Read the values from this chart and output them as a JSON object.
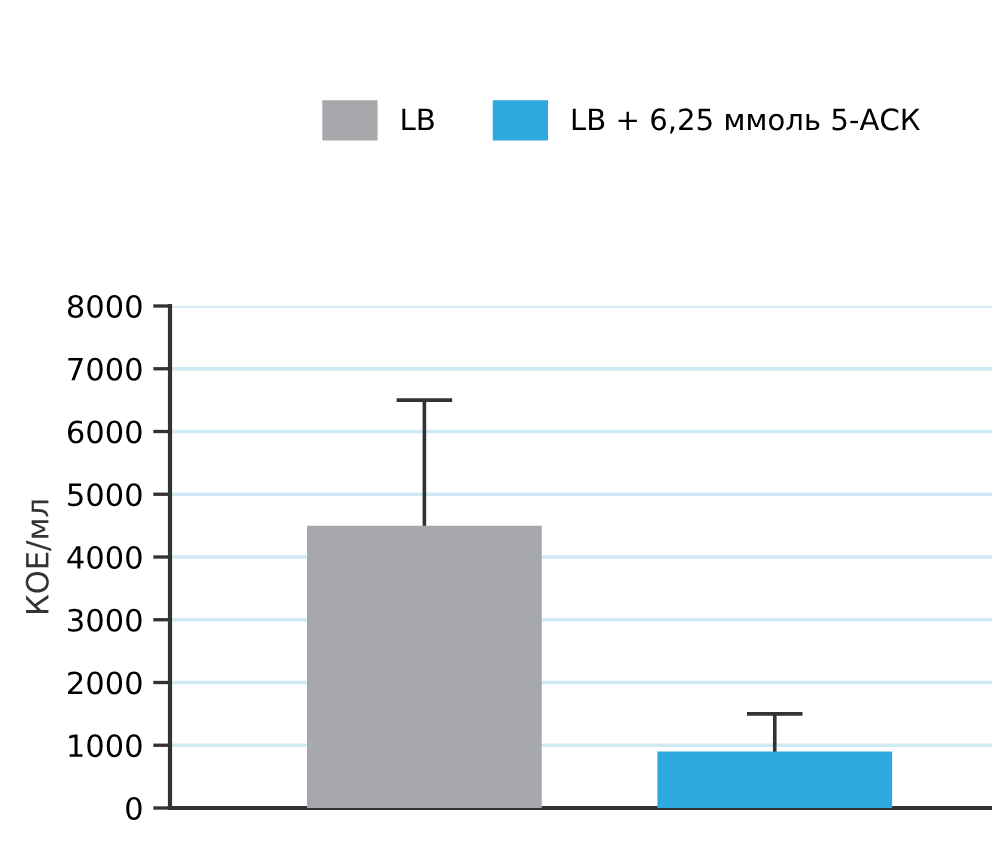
{
  "chart_data": {
    "type": "bar",
    "ylabel": "КОЕ/мл",
    "categories": [
      null,
      null
    ],
    "series": [
      {
        "name": "LB",
        "color": "#a7a8ab",
        "values": [
          4500,
          null
        ],
        "errors": [
          2000,
          null
        ]
      },
      {
        "name": "LB + 6,25 ммоль 5-АСК",
        "color": "#2ea9e0",
        "values": [
          null,
          900
        ],
        "errors": [
          null,
          600
        ]
      }
    ],
    "ylim": [
      0,
      8000
    ],
    "yticks": [
      0,
      1000,
      2000,
      3000,
      4000,
      5000,
      6000,
      7000,
      8000
    ],
    "grid": "y",
    "legend": "top"
  }
}
